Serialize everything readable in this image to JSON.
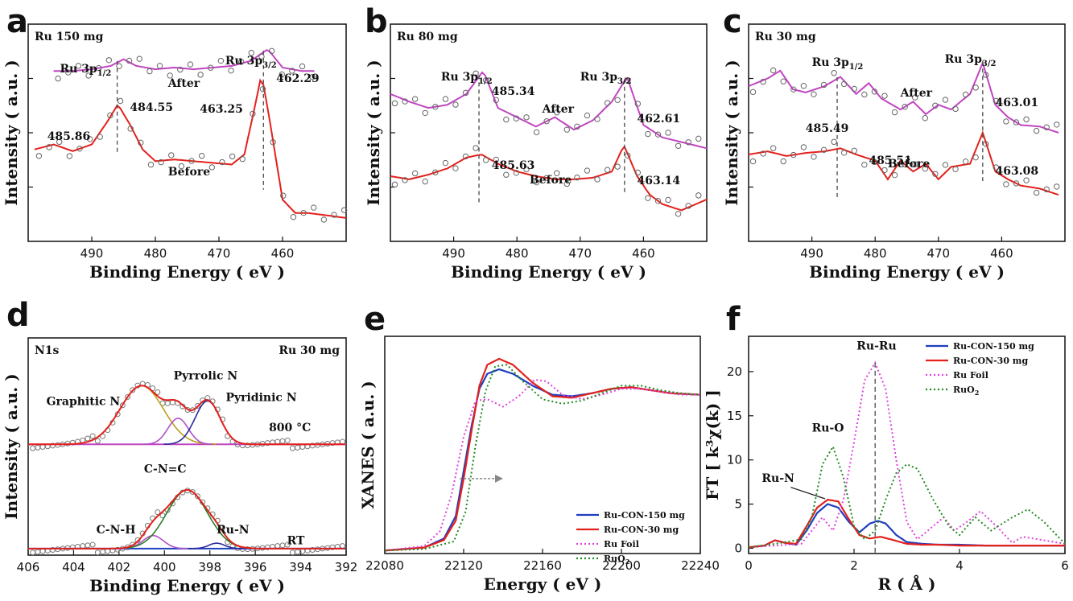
{
  "colors": {
    "red": "#e3211c",
    "magenta": "#c145c1",
    "gray": "#555555",
    "blue": "#1f3fbf",
    "green": "#1f8a1f",
    "pink": "#e040e0",
    "olive": "#b8a01c",
    "violet": "#b050c8",
    "navy": "#2a2aa0",
    "darkgreen": "#2a7d2a"
  },
  "chart_data": [
    {
      "panel": "a",
      "type": "line",
      "title": "Ru 150 mg",
      "xlabel": "Binding Energy ( eV )",
      "ylabel": "Intensity ( a.u. )",
      "xlim": [
        500,
        450
      ],
      "ylim": [
        0,
        1.3
      ],
      "xticks": [
        490,
        480,
        470,
        460
      ],
      "series": [
        {
          "name": "After",
          "color": "magenta",
          "x": [
            496,
            493,
            490,
            487,
            485,
            483,
            480,
            477,
            474,
            471,
            468,
            465,
            462.3,
            460,
            457,
            455
          ],
          "y": [
            1.02,
            1.02,
            1.03,
            1.05,
            1.09,
            1.05,
            1.03,
            1.04,
            1.03,
            1.04,
            1.05,
            1.08,
            1.15,
            1.04,
            1.02,
            1.02
          ]
        },
        {
          "name": "Before",
          "color": "red",
          "x": [
            499,
            496,
            493,
            490,
            487.5,
            485.9,
            484,
            482,
            480,
            477,
            474,
            471,
            468,
            466,
            464.5,
            463.3,
            462,
            460,
            458,
            456,
            452,
            450
          ],
          "y": [
            0.55,
            0.58,
            0.54,
            0.58,
            0.72,
            0.82,
            0.7,
            0.55,
            0.48,
            0.49,
            0.48,
            0.47,
            0.46,
            0.52,
            0.78,
            1.0,
            0.72,
            0.25,
            0.17,
            0.17,
            0.15,
            0.14
          ]
        }
      ],
      "labels": {
        "peak1": "Ru 3p1/2",
        "peak2": "Ru 3p3/2",
        "after": "After",
        "before": "Before",
        "after_p1": "484.55",
        "after_p2": "462.29",
        "before_p1": "485.86",
        "before_p2": "463.25"
      },
      "peak_lines": [
        486,
        463
      ]
    },
    {
      "panel": "b",
      "type": "line",
      "title": "Ru 80 mg",
      "xlabel": "Binding Energy ( eV )",
      "ylabel": "Intensity ( a.u. )",
      "xlim": [
        500,
        450
      ],
      "ylim": [
        0,
        1.4
      ],
      "xticks": [
        490,
        480,
        470,
        460
      ],
      "series": [
        {
          "name": "After",
          "color": "magenta",
          "x": [
            500,
            497,
            494,
            491,
            488,
            485.3,
            483,
            480,
            477,
            474,
            471,
            468,
            465,
            462.6,
            460,
            457,
            454,
            450
          ],
          "y": [
            0.95,
            0.9,
            0.86,
            0.88,
            0.95,
            1.1,
            0.86,
            0.8,
            0.74,
            0.8,
            0.72,
            0.78,
            0.9,
            1.06,
            0.75,
            0.67,
            0.64,
            0.6
          ]
        },
        {
          "name": "Before",
          "color": "red",
          "x": [
            500,
            497,
            494,
            491,
            488,
            485.6,
            483,
            480,
            477,
            474,
            471,
            468,
            465,
            463.1,
            461,
            459,
            457,
            454,
            450
          ],
          "y": [
            0.42,
            0.4,
            0.43,
            0.47,
            0.54,
            0.56,
            0.5,
            0.45,
            0.42,
            0.4,
            0.4,
            0.41,
            0.45,
            0.62,
            0.42,
            0.3,
            0.24,
            0.2,
            0.27
          ]
        }
      ],
      "labels": {
        "peak1": "Ru 3p1/2",
        "peak2": "Ru 3p3/2",
        "after": "After",
        "before": "Before",
        "after_p1": "485.34",
        "after_p2": "462.61",
        "before_p1": "485.63",
        "before_p2": "463.14"
      },
      "peak_lines": [
        486,
        463
      ]
    },
    {
      "panel": "c",
      "type": "line",
      "title": "Ru 30 mg",
      "xlabel": "Binding Energy ( eV )",
      "ylabel": "Intensity ( a.u. )",
      "xlim": [
        500,
        450
      ],
      "ylim": [
        0,
        1.4
      ],
      "xticks": [
        490,
        480,
        470,
        460
      ],
      "series": [
        {
          "name": "After",
          "color": "magenta",
          "x": [
            500,
            497,
            495,
            493,
            491,
            488,
            485.5,
            483,
            481,
            479,
            476,
            474,
            472,
            470,
            468,
            465,
            463,
            461,
            459,
            457,
            454,
            451
          ],
          "y": [
            1.0,
            1.05,
            1.1,
            0.98,
            0.96,
            1.0,
            1.06,
            0.95,
            1.02,
            0.92,
            0.85,
            0.9,
            0.82,
            0.88,
            0.85,
            0.95,
            1.15,
            0.88,
            0.8,
            0.75,
            0.74,
            0.7
          ]
        },
        {
          "name": "Before",
          "color": "red",
          "x": [
            500,
            497,
            494,
            491,
            488,
            485.5,
            483,
            480,
            478,
            476,
            474,
            472,
            470,
            468,
            465,
            463,
            461,
            459,
            457,
            454,
            451
          ],
          "y": [
            0.56,
            0.58,
            0.55,
            0.57,
            0.58,
            0.6,
            0.56,
            0.52,
            0.4,
            0.52,
            0.45,
            0.5,
            0.4,
            0.48,
            0.5,
            0.7,
            0.45,
            0.4,
            0.36,
            0.34,
            0.3
          ]
        }
      ],
      "labels": {
        "peak1": "Ru 3p1/2",
        "peak2": "Ru 3p3/2",
        "after": "After",
        "before": "Before",
        "after_p1": "485.49",
        "after_p2": "463.01",
        "before_p1": "485.51",
        "before_p2": "463.08"
      },
      "peak_lines": [
        486,
        463
      ]
    },
    {
      "panel": "d",
      "type": "line",
      "title": "N1s",
      "subtitle": "Ru 30 mg",
      "xlabel": "Binding Energy ( eV )",
      "ylabel": "Intensity ( a.u. )",
      "xlim": [
        406,
        392
      ],
      "xticks": [
        406,
        404,
        402,
        400,
        398,
        396,
        394,
        392
      ],
      "top": {
        "condition": "800 °C",
        "baseline": 0.51,
        "components": [
          {
            "name": "Graphitic N",
            "color": "olive",
            "center": 401.0,
            "amp": 0.27,
            "sigma": 0.95
          },
          {
            "name": "Pyrrolic N",
            "color": "violet",
            "center": 399.4,
            "amp": 0.12,
            "sigma": 0.45
          },
          {
            "name": "Pyridinic N",
            "color": "navy",
            "center": 398.1,
            "amp": 0.2,
            "sigma": 0.55
          }
        ]
      },
      "bottom": {
        "condition": "RT",
        "baseline": 0.03,
        "components": [
          {
            "name": "C-N-H",
            "color": "violet",
            "center": 400.5,
            "amp": 0.06,
            "sigma": 0.45
          },
          {
            "name": "C-N=C",
            "color": "darkgreen",
            "center": 399.0,
            "amp": 0.27,
            "sigma": 0.9
          },
          {
            "name": "Ru-N",
            "color": "navy",
            "center": 397.7,
            "amp": 0.025,
            "sigma": 0.35
          }
        ]
      }
    },
    {
      "panel": "e",
      "type": "line",
      "xlabel": "Energy ( eV )",
      "ylabel": "XANES ( a.u. )",
      "xlim": [
        22080,
        22240
      ],
      "ylim": [
        0,
        1.45
      ],
      "xticks": [
        22080,
        22120,
        22160,
        22200,
        22240
      ],
      "series": [
        {
          "name": "Ru-CON-150 mg",
          "color": "blue",
          "style": "solid",
          "x": [
            22080,
            22100,
            22110,
            22116,
            22120,
            22124,
            22128,
            22132,
            22138,
            22145,
            22155,
            22165,
            22175,
            22185,
            22195,
            22205,
            22215,
            22225,
            22240
          ],
          "y": [
            0.02,
            0.04,
            0.1,
            0.25,
            0.55,
            0.85,
            1.1,
            1.2,
            1.23,
            1.2,
            1.12,
            1.06,
            1.05,
            1.07,
            1.1,
            1.11,
            1.09,
            1.07,
            1.06
          ]
        },
        {
          "name": "Ru-CON-30 mg",
          "color": "red",
          "style": "solid",
          "x": [
            22080,
            22100,
            22110,
            22116,
            22120,
            22124,
            22128,
            22132,
            22138,
            22145,
            22155,
            22165,
            22175,
            22185,
            22195,
            22205,
            22215,
            22225,
            22240
          ],
          "y": [
            0.02,
            0.04,
            0.09,
            0.22,
            0.5,
            0.82,
            1.12,
            1.26,
            1.3,
            1.26,
            1.14,
            1.05,
            1.04,
            1.07,
            1.1,
            1.11,
            1.09,
            1.07,
            1.06
          ]
        },
        {
          "name": "Ru Foil",
          "color": "pink",
          "style": "dotted",
          "x": [
            22080,
            22100,
            22108,
            22114,
            22120,
            22126,
            22132,
            22140,
            22148,
            22156,
            22162,
            22170,
            22180,
            22190,
            22200,
            22210,
            22220,
            22230,
            22240
          ],
          "y": [
            0.02,
            0.05,
            0.15,
            0.4,
            0.78,
            1.02,
            1.03,
            0.98,
            1.05,
            1.16,
            1.15,
            1.06,
            1.03,
            1.06,
            1.1,
            1.1,
            1.08,
            1.06,
            1.06
          ]
        },
        {
          "name": "RuO2",
          "color": "green",
          "style": "dotted",
          "x": [
            22080,
            22100,
            22115,
            22121,
            22126,
            22131,
            22136,
            22142,
            22150,
            22160,
            22170,
            22180,
            22190,
            22200,
            22210,
            22220,
            22230,
            22240
          ],
          "y": [
            0.02,
            0.03,
            0.08,
            0.28,
            0.72,
            1.08,
            1.25,
            1.26,
            1.15,
            1.03,
            1.0,
            1.02,
            1.07,
            1.12,
            1.12,
            1.09,
            1.07,
            1.06
          ]
        }
      ],
      "legend": [
        "Ru-CON-150 mg",
        "Ru-CON-30 mg",
        "Ru Foil",
        "RuO2"
      ],
      "arrow": {
        "x_from": 22118,
        "x_to": 22140,
        "y": 0.5
      }
    },
    {
      "panel": "f",
      "type": "line",
      "xlabel": "R ( Å )",
      "ylabel": "FT [ k³χ(k) ]",
      "xlim": [
        0,
        6
      ],
      "ylim": [
        -0.6,
        24
      ],
      "xticks": [
        0,
        2,
        4,
        6
      ],
      "yticks": [
        0,
        5,
        10,
        15,
        20
      ],
      "series": [
        {
          "name": "Ru-CON-150 mg",
          "color": "blue",
          "style": "solid",
          "x": [
            0,
            0.3,
            0.5,
            0.7,
            0.9,
            1.1,
            1.3,
            1.5,
            1.7,
            1.9,
            2.1,
            2.3,
            2.45,
            2.6,
            2.8,
            3.0,
            3.3,
            3.6,
            4,
            4.5,
            5,
            6
          ],
          "y": [
            0.1,
            0.3,
            0.9,
            0.6,
            0.4,
            2.0,
            4.0,
            5.0,
            4.6,
            3.0,
            1.8,
            2.8,
            3.1,
            2.8,
            1.5,
            0.7,
            0.5,
            0.4,
            0.4,
            0.3,
            0.3,
            0.3
          ]
        },
        {
          "name": "Ru-CON-30 mg",
          "color": "red",
          "style": "solid",
          "x": [
            0,
            0.3,
            0.5,
            0.7,
            0.9,
            1.1,
            1.3,
            1.5,
            1.7,
            1.9,
            2.1,
            2.3,
            2.5,
            2.7,
            3.0,
            3.3,
            3.6,
            4,
            4.5,
            5,
            6
          ],
          "y": [
            0.1,
            0.3,
            0.9,
            0.6,
            0.5,
            2.5,
            4.6,
            5.5,
            5.3,
            3.3,
            1.5,
            1.1,
            1.3,
            1.0,
            0.5,
            0.4,
            0.4,
            0.3,
            0.3,
            0.3,
            0.3
          ]
        },
        {
          "name": "Ru Foil",
          "color": "pink",
          "style": "dotted",
          "x": [
            0,
            0.5,
            1.0,
            1.2,
            1.4,
            1.6,
            1.8,
            2.0,
            2.2,
            2.4,
            2.6,
            2.8,
            3.0,
            3.2,
            3.5,
            3.7,
            3.9,
            4.1,
            4.4,
            4.7,
            5.0,
            5.2,
            5.5,
            6
          ],
          "y": [
            0.1,
            0.3,
            0.5,
            2.0,
            3.5,
            2.0,
            5.5,
            12,
            19,
            21,
            18,
            10,
            3.0,
            1.0,
            2.5,
            3.5,
            2.0,
            2.8,
            4.2,
            2.5,
            0.6,
            1.3,
            1.0,
            0.5
          ]
        },
        {
          "name": "RuO2",
          "color": "green",
          "style": "dotted",
          "x": [
            0,
            0.5,
            1.0,
            1.2,
            1.4,
            1.6,
            1.8,
            2.0,
            2.2,
            2.4,
            2.6,
            2.8,
            3.0,
            3.2,
            3.5,
            3.8,
            4.0,
            4.3,
            4.6,
            5.0,
            5.3,
            5.6,
            6
          ],
          "y": [
            0.1,
            0.5,
            1.0,
            3.5,
            9.5,
            11.5,
            8.0,
            2.5,
            1.0,
            2.0,
            5.5,
            8.5,
            9.5,
            9.0,
            5.5,
            2.5,
            1.5,
            3.5,
            2.0,
            3.5,
            4.4,
            3.0,
            0.5
          ]
        }
      ],
      "legend": [
        "Ru-CON-150 mg",
        "Ru-CON-30 mg",
        "Ru Foil",
        "RuO2"
      ],
      "labels": {
        "ru_ru": "Ru-Ru",
        "ru_o": "Ru-O",
        "ru_n": "Ru-N"
      },
      "peak_line": 2.4
    }
  ],
  "panel_letters": [
    "a",
    "b",
    "c",
    "d",
    "e",
    "f"
  ]
}
